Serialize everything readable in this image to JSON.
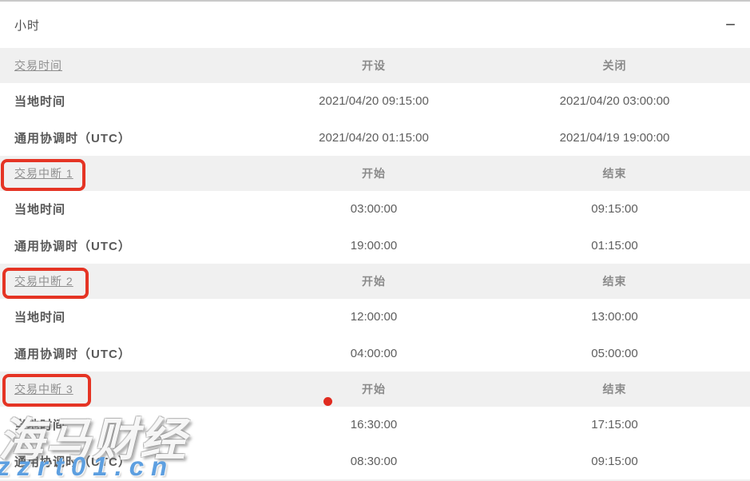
{
  "panel": {
    "title": "小时",
    "collapse_icon": "−"
  },
  "annotation": {
    "box_color": "#e53424",
    "dot_color": "#e02b20"
  },
  "watermark": {
    "brand": "海马财经",
    "url": "zzrt01.cn",
    "url_color": "#5d9fe0"
  },
  "table": {
    "sections": [
      {
        "header": {
          "label": "交易时间",
          "col1": "开设",
          "col2": "关闭"
        },
        "rows": [
          {
            "label": "当地时间",
            "col1": "2021/04/20 09:15:00",
            "col2": "2021/04/20 03:00:00"
          },
          {
            "label": "通用协调时（UTC）",
            "col1": "2021/04/20 01:15:00",
            "col2": "2021/04/19 19:00:00"
          }
        ]
      },
      {
        "header": {
          "label": "交易中断 1",
          "col1": "开始",
          "col2": "结束"
        },
        "rows": [
          {
            "label": "当地时间",
            "col1": "03:00:00",
            "col2": "09:15:00"
          },
          {
            "label": "通用协调时（UTC）",
            "col1": "19:00:00",
            "col2": "01:15:00"
          }
        ]
      },
      {
        "header": {
          "label": "交易中断 2",
          "col1": "开始",
          "col2": "结束"
        },
        "rows": [
          {
            "label": "当地时间",
            "col1": "12:00:00",
            "col2": "13:00:00"
          },
          {
            "label": "通用协调时（UTC）",
            "col1": "04:00:00",
            "col2": "05:00:00"
          }
        ]
      },
      {
        "header": {
          "label": "交易中断 3",
          "col1": "开始",
          "col2": "结束"
        },
        "rows": [
          {
            "label": "当地时间",
            "col1": "16:30:00",
            "col2": "17:15:00"
          },
          {
            "label": "通用协调时（UTC）",
            "col1": "08:30:00",
            "col2": "09:15:00"
          }
        ]
      }
    ]
  }
}
